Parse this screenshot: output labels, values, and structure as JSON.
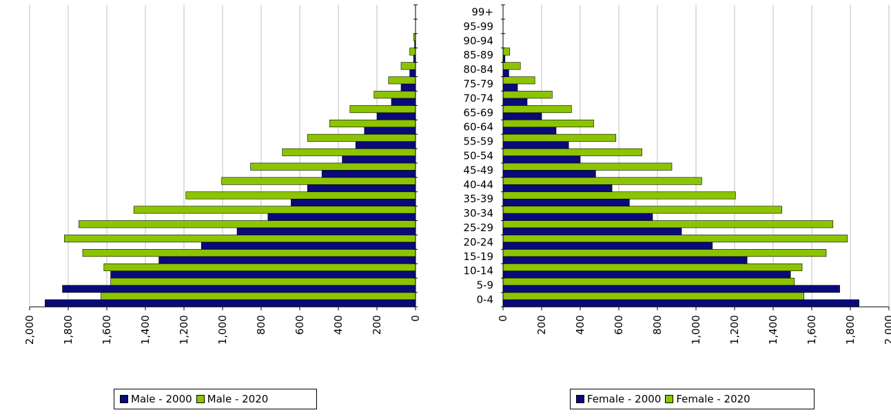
{
  "colors": {
    "c2000": "#0a0a7a",
    "c2020": "#8cc400",
    "grid": "#bfbfbf"
  },
  "chart_data": [
    {
      "type": "bar",
      "orientation": "horizontal",
      "direction": "leftward",
      "categories": [
        "0-4",
        "5-9",
        "10-14",
        "15-19",
        "20-24",
        "25-29",
        "30-34",
        "35-39",
        "40-44",
        "45-49",
        "50-54",
        "55-59",
        "60-64",
        "65-69",
        "70-74",
        "75-79",
        "80-84",
        "85-89",
        "90-94",
        "95-99",
        "99+"
      ],
      "xlim": [
        0,
        2000
      ],
      "xticks": [
        0,
        200,
        400,
        600,
        800,
        1000,
        1200,
        1400,
        1600,
        1800,
        2000
      ],
      "xtick_labels": [
        "0",
        "200",
        "400",
        "600",
        "800",
        "1,000",
        "1,200",
        "1,400",
        "1,600",
        "1,800",
        "2,000"
      ],
      "grid": true,
      "series": [
        {
          "name": "Male - 2000",
          "color": "#0a0a7a",
          "values": [
            1920,
            1830,
            1580,
            1330,
            1110,
            925,
            765,
            645,
            560,
            485,
            380,
            310,
            265,
            200,
            125,
            75,
            30,
            10,
            5,
            0,
            0
          ]
        },
        {
          "name": "Male - 2020",
          "color": "#8cc400",
          "values": [
            1630,
            1580,
            1615,
            1725,
            1820,
            1745,
            1460,
            1190,
            1005,
            855,
            690,
            560,
            445,
            340,
            215,
            140,
            75,
            30,
            10,
            0,
            0
          ]
        }
      ],
      "legend": {
        "position": "bottom",
        "items": [
          "Male - 2000",
          "Male - 2020"
        ]
      }
    },
    {
      "type": "bar",
      "orientation": "horizontal",
      "direction": "rightward",
      "categories": [
        "0-4",
        "5-9",
        "10-14",
        "15-19",
        "20-24",
        "25-29",
        "30-34",
        "35-39",
        "40-44",
        "45-49",
        "50-54",
        "55-59",
        "60-64",
        "65-69",
        "70-74",
        "75-79",
        "80-84",
        "85-89",
        "90-94",
        "95-99",
        "99+"
      ],
      "xlim": [
        0,
        2000
      ],
      "xticks": [
        0,
        200,
        400,
        600,
        800,
        1000,
        1200,
        1400,
        1600,
        1800,
        2000
      ],
      "xtick_labels": [
        "0",
        "200",
        "400",
        "600",
        "800",
        "1,000",
        "1,200",
        "1,400",
        "1,600",
        "1,800",
        "2,000"
      ],
      "grid": true,
      "series": [
        {
          "name": "Female - 2000",
          "color": "#0a0a7a",
          "values": [
            1845,
            1745,
            1490,
            1265,
            1085,
            925,
            775,
            655,
            565,
            480,
            400,
            340,
            275,
            200,
            125,
            75,
            30,
            10,
            0,
            0,
            0
          ]
        },
        {
          "name": "Female - 2020",
          "color": "#8cc400",
          "values": [
            1560,
            1510,
            1550,
            1675,
            1785,
            1710,
            1445,
            1205,
            1030,
            875,
            720,
            585,
            470,
            355,
            255,
            165,
            90,
            35,
            0,
            0,
            0
          ]
        }
      ],
      "legend": {
        "position": "bottom",
        "items": [
          "Female - 2000",
          "Female - 2020"
        ]
      }
    }
  ]
}
